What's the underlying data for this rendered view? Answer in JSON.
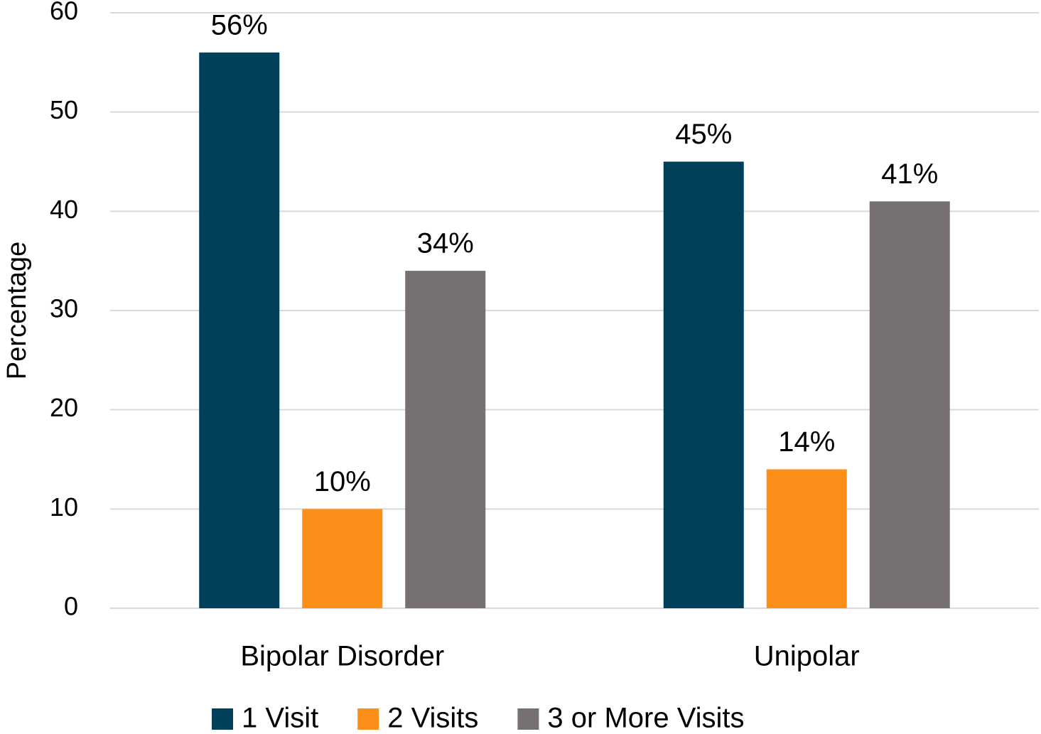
{
  "chart_data": {
    "type": "bar",
    "ylabel": "Percentage",
    "categories": [
      "Bipolar Disorder",
      "Unipolar"
    ],
    "series": [
      {
        "name": "1 Visit",
        "color": "#023f5a",
        "values": [
          56,
          45
        ],
        "value_labels": [
          "56%",
          "45%"
        ]
      },
      {
        "name": "2 Visits",
        "color": "#fb8f1a",
        "values": [
          10,
          14
        ],
        "value_labels": [
          "10%",
          "14%"
        ]
      },
      {
        "name": "3 or More Visits",
        "color": "#767170",
        "values": [
          34,
          41
        ],
        "value_labels": [
          "34%",
          "41%"
        ]
      }
    ],
    "ylim": [
      0,
      60
    ],
    "yticks": [
      0,
      10,
      20,
      30,
      40,
      50,
      60
    ],
    "grid": true,
    "legend": "bottom"
  }
}
